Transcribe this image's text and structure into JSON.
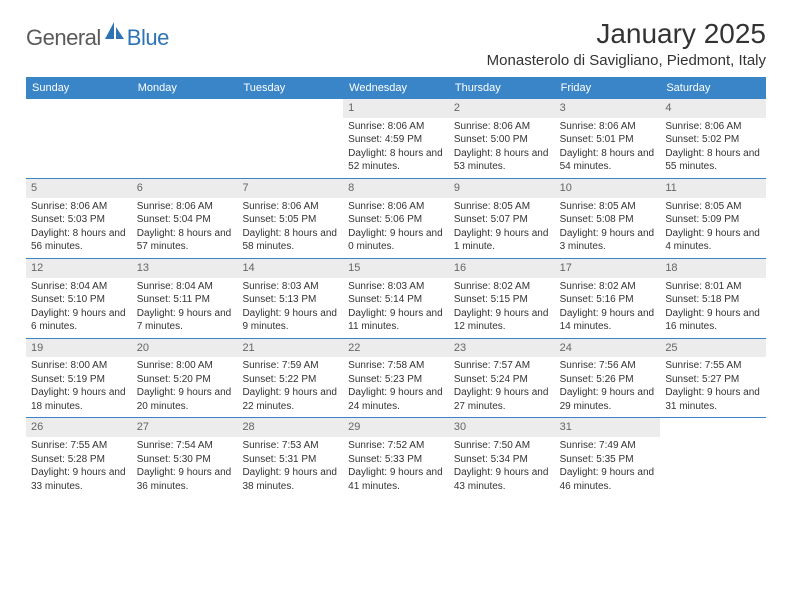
{
  "brand": {
    "word1": "General",
    "word2": "Blue"
  },
  "title": "January 2025",
  "location": "Monasterolo di Savigliano, Piedmont, Italy",
  "theme": {
    "header_bg": "#3a85c8",
    "header_text": "#ffffff",
    "daynum_bg": "#ececec",
    "daynum_text": "#666666",
    "rule_color": "#3a85c8",
    "body_text": "#333333",
    "font_size_body": 10,
    "font_size_title": 28,
    "font_size_location": 15
  },
  "weekdays": [
    "Sunday",
    "Monday",
    "Tuesday",
    "Wednesday",
    "Thursday",
    "Friday",
    "Saturday"
  ],
  "weeks": [
    [
      {
        "n": "",
        "sunrise": "",
        "sunset": "",
        "daylight": ""
      },
      {
        "n": "",
        "sunrise": "",
        "sunset": "",
        "daylight": ""
      },
      {
        "n": "",
        "sunrise": "",
        "sunset": "",
        "daylight": ""
      },
      {
        "n": "1",
        "sunrise": "Sunrise: 8:06 AM",
        "sunset": "Sunset: 4:59 PM",
        "daylight": "Daylight: 8 hours and 52 minutes."
      },
      {
        "n": "2",
        "sunrise": "Sunrise: 8:06 AM",
        "sunset": "Sunset: 5:00 PM",
        "daylight": "Daylight: 8 hours and 53 minutes."
      },
      {
        "n": "3",
        "sunrise": "Sunrise: 8:06 AM",
        "sunset": "Sunset: 5:01 PM",
        "daylight": "Daylight: 8 hours and 54 minutes."
      },
      {
        "n": "4",
        "sunrise": "Sunrise: 8:06 AM",
        "sunset": "Sunset: 5:02 PM",
        "daylight": "Daylight: 8 hours and 55 minutes."
      }
    ],
    [
      {
        "n": "5",
        "sunrise": "Sunrise: 8:06 AM",
        "sunset": "Sunset: 5:03 PM",
        "daylight": "Daylight: 8 hours and 56 minutes."
      },
      {
        "n": "6",
        "sunrise": "Sunrise: 8:06 AM",
        "sunset": "Sunset: 5:04 PM",
        "daylight": "Daylight: 8 hours and 57 minutes."
      },
      {
        "n": "7",
        "sunrise": "Sunrise: 8:06 AM",
        "sunset": "Sunset: 5:05 PM",
        "daylight": "Daylight: 8 hours and 58 minutes."
      },
      {
        "n": "8",
        "sunrise": "Sunrise: 8:06 AM",
        "sunset": "Sunset: 5:06 PM",
        "daylight": "Daylight: 9 hours and 0 minutes."
      },
      {
        "n": "9",
        "sunrise": "Sunrise: 8:05 AM",
        "sunset": "Sunset: 5:07 PM",
        "daylight": "Daylight: 9 hours and 1 minute."
      },
      {
        "n": "10",
        "sunrise": "Sunrise: 8:05 AM",
        "sunset": "Sunset: 5:08 PM",
        "daylight": "Daylight: 9 hours and 3 minutes."
      },
      {
        "n": "11",
        "sunrise": "Sunrise: 8:05 AM",
        "sunset": "Sunset: 5:09 PM",
        "daylight": "Daylight: 9 hours and 4 minutes."
      }
    ],
    [
      {
        "n": "12",
        "sunrise": "Sunrise: 8:04 AM",
        "sunset": "Sunset: 5:10 PM",
        "daylight": "Daylight: 9 hours and 6 minutes."
      },
      {
        "n": "13",
        "sunrise": "Sunrise: 8:04 AM",
        "sunset": "Sunset: 5:11 PM",
        "daylight": "Daylight: 9 hours and 7 minutes."
      },
      {
        "n": "14",
        "sunrise": "Sunrise: 8:03 AM",
        "sunset": "Sunset: 5:13 PM",
        "daylight": "Daylight: 9 hours and 9 minutes."
      },
      {
        "n": "15",
        "sunrise": "Sunrise: 8:03 AM",
        "sunset": "Sunset: 5:14 PM",
        "daylight": "Daylight: 9 hours and 11 minutes."
      },
      {
        "n": "16",
        "sunrise": "Sunrise: 8:02 AM",
        "sunset": "Sunset: 5:15 PM",
        "daylight": "Daylight: 9 hours and 12 minutes."
      },
      {
        "n": "17",
        "sunrise": "Sunrise: 8:02 AM",
        "sunset": "Sunset: 5:16 PM",
        "daylight": "Daylight: 9 hours and 14 minutes."
      },
      {
        "n": "18",
        "sunrise": "Sunrise: 8:01 AM",
        "sunset": "Sunset: 5:18 PM",
        "daylight": "Daylight: 9 hours and 16 minutes."
      }
    ],
    [
      {
        "n": "19",
        "sunrise": "Sunrise: 8:00 AM",
        "sunset": "Sunset: 5:19 PM",
        "daylight": "Daylight: 9 hours and 18 minutes."
      },
      {
        "n": "20",
        "sunrise": "Sunrise: 8:00 AM",
        "sunset": "Sunset: 5:20 PM",
        "daylight": "Daylight: 9 hours and 20 minutes."
      },
      {
        "n": "21",
        "sunrise": "Sunrise: 7:59 AM",
        "sunset": "Sunset: 5:22 PM",
        "daylight": "Daylight: 9 hours and 22 minutes."
      },
      {
        "n": "22",
        "sunrise": "Sunrise: 7:58 AM",
        "sunset": "Sunset: 5:23 PM",
        "daylight": "Daylight: 9 hours and 24 minutes."
      },
      {
        "n": "23",
        "sunrise": "Sunrise: 7:57 AM",
        "sunset": "Sunset: 5:24 PM",
        "daylight": "Daylight: 9 hours and 27 minutes."
      },
      {
        "n": "24",
        "sunrise": "Sunrise: 7:56 AM",
        "sunset": "Sunset: 5:26 PM",
        "daylight": "Daylight: 9 hours and 29 minutes."
      },
      {
        "n": "25",
        "sunrise": "Sunrise: 7:55 AM",
        "sunset": "Sunset: 5:27 PM",
        "daylight": "Daylight: 9 hours and 31 minutes."
      }
    ],
    [
      {
        "n": "26",
        "sunrise": "Sunrise: 7:55 AM",
        "sunset": "Sunset: 5:28 PM",
        "daylight": "Daylight: 9 hours and 33 minutes."
      },
      {
        "n": "27",
        "sunrise": "Sunrise: 7:54 AM",
        "sunset": "Sunset: 5:30 PM",
        "daylight": "Daylight: 9 hours and 36 minutes."
      },
      {
        "n": "28",
        "sunrise": "Sunrise: 7:53 AM",
        "sunset": "Sunset: 5:31 PM",
        "daylight": "Daylight: 9 hours and 38 minutes."
      },
      {
        "n": "29",
        "sunrise": "Sunrise: 7:52 AM",
        "sunset": "Sunset: 5:33 PM",
        "daylight": "Daylight: 9 hours and 41 minutes."
      },
      {
        "n": "30",
        "sunrise": "Sunrise: 7:50 AM",
        "sunset": "Sunset: 5:34 PM",
        "daylight": "Daylight: 9 hours and 43 minutes."
      },
      {
        "n": "31",
        "sunrise": "Sunrise: 7:49 AM",
        "sunset": "Sunset: 5:35 PM",
        "daylight": "Daylight: 9 hours and 46 minutes."
      },
      {
        "n": "",
        "sunrise": "",
        "sunset": "",
        "daylight": ""
      }
    ]
  ]
}
